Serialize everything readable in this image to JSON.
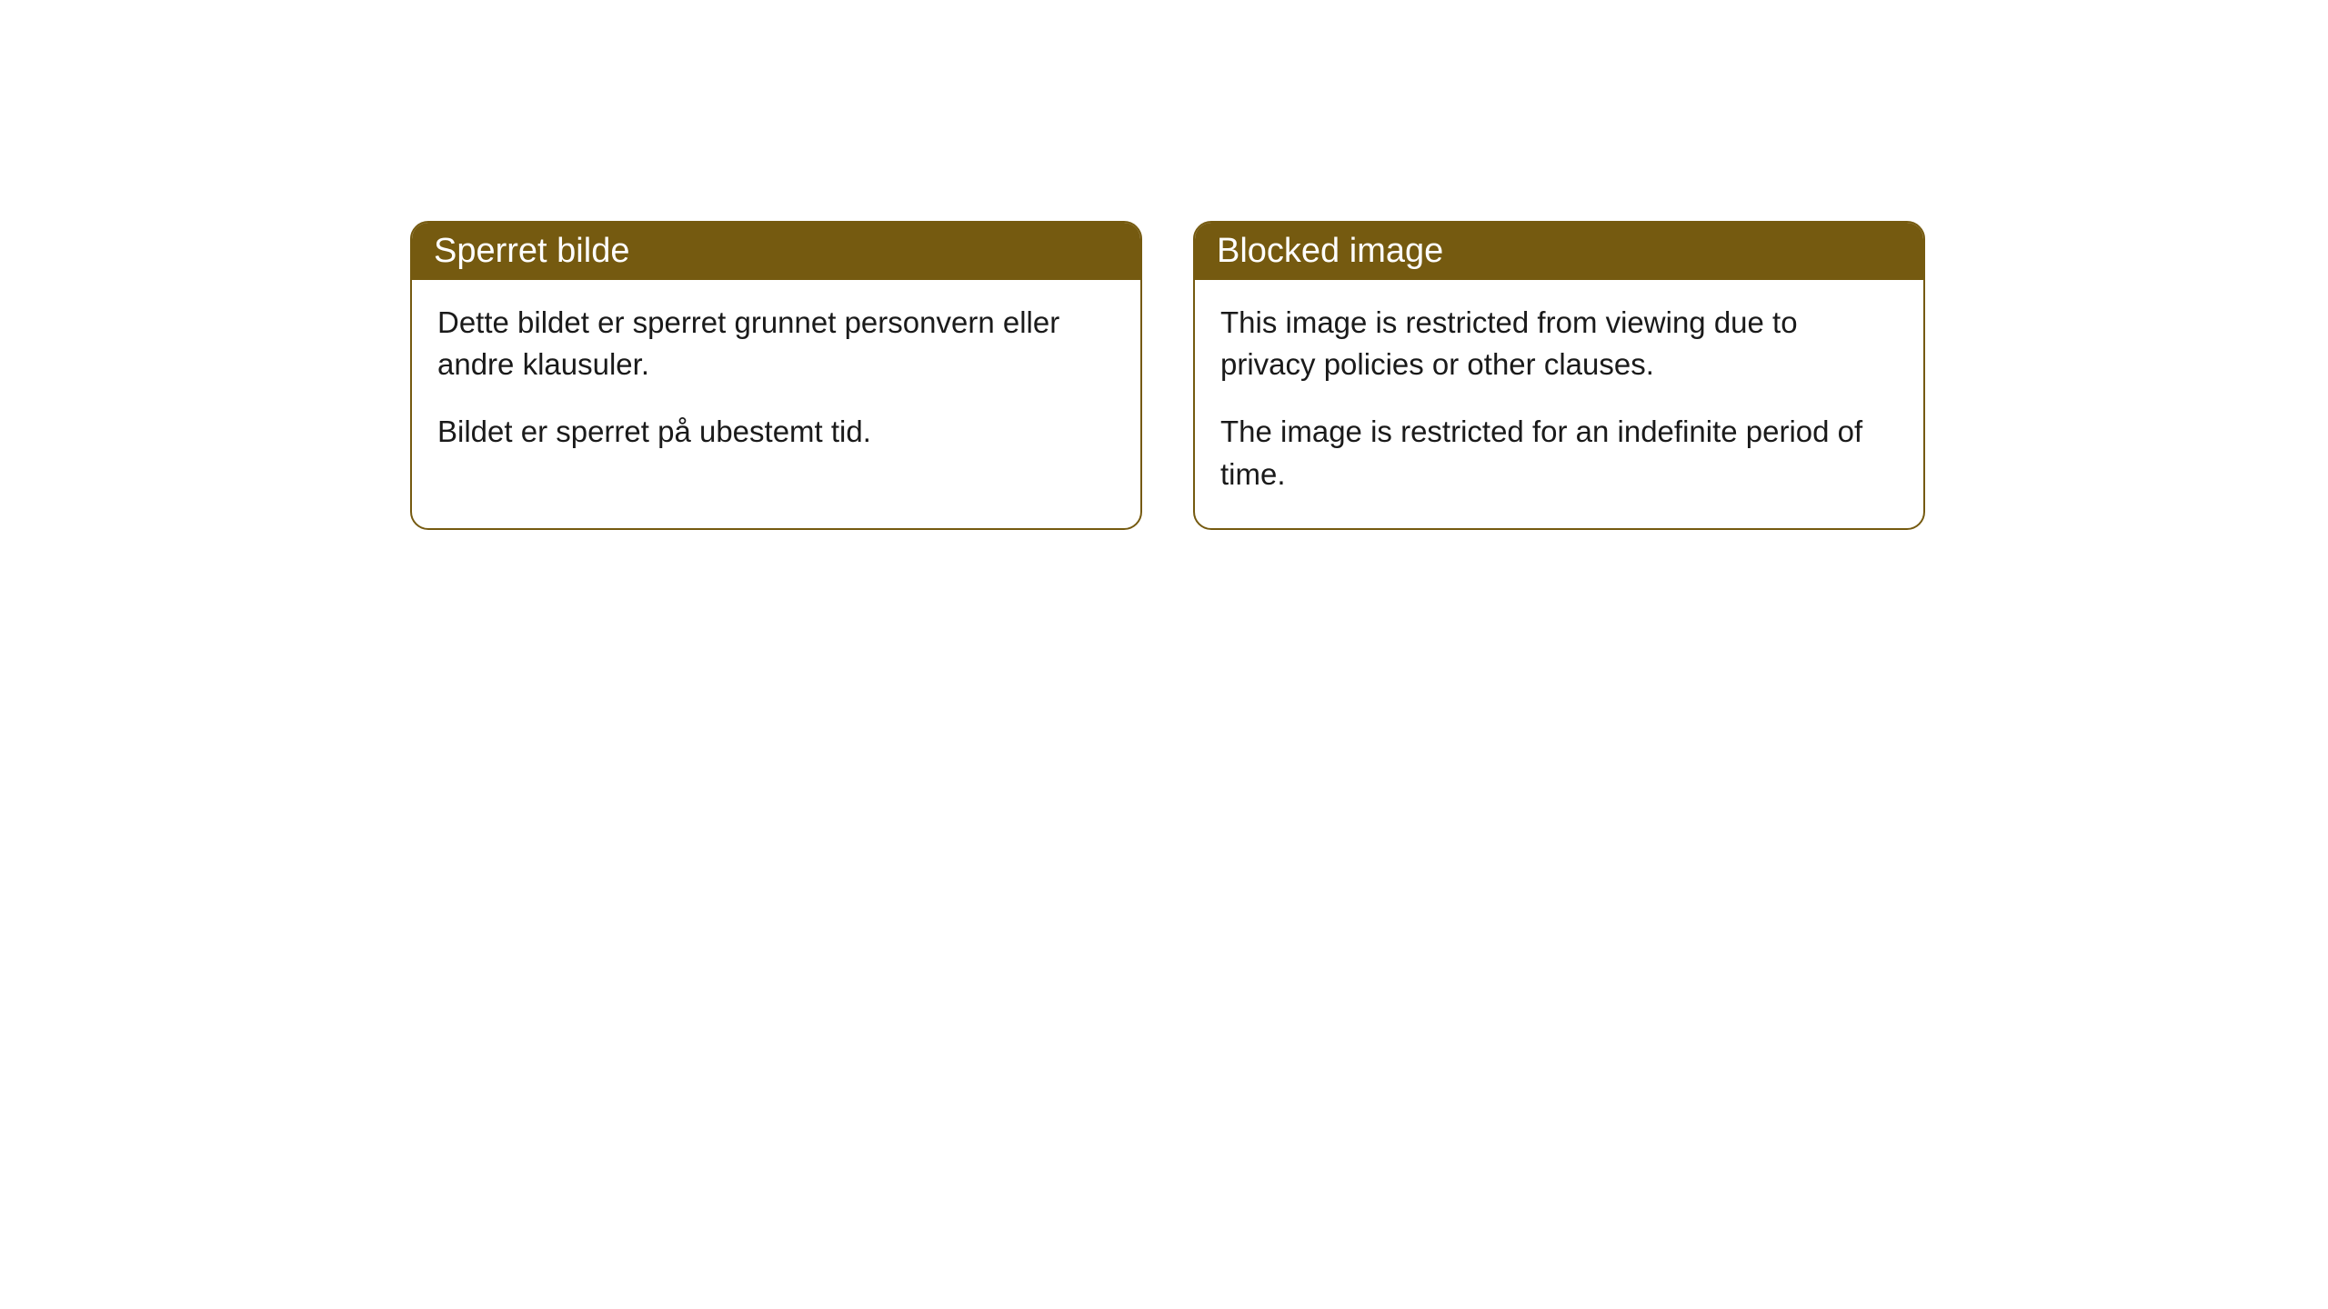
{
  "cards": [
    {
      "title": "Sperret bilde",
      "paragraph1": "Dette bildet er sperret grunnet personvern eller andre klausuler.",
      "paragraph2": "Bildet er sperret på ubestemt tid."
    },
    {
      "title": "Blocked image",
      "paragraph1": "This image is restricted from viewing due to privacy policies or other clauses.",
      "paragraph2": "The image is restricted for an indefinite period of time."
    }
  ],
  "style": {
    "header_bg_color": "#755a10",
    "header_text_color": "#ffffff",
    "border_color": "#755a10",
    "card_bg_color": "#ffffff",
    "body_text_color": "#1a1a1a",
    "border_radius": 20,
    "header_fontsize": 38,
    "body_fontsize": 33
  }
}
